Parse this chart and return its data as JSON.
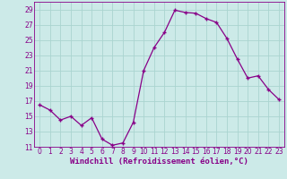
{
  "hours": [
    0,
    1,
    2,
    3,
    4,
    5,
    6,
    7,
    8,
    9,
    10,
    11,
    12,
    13,
    14,
    15,
    16,
    17,
    18,
    19,
    20,
    21,
    22,
    23
  ],
  "values": [
    16.5,
    15.8,
    14.5,
    15.0,
    13.8,
    14.8,
    12.0,
    11.2,
    11.5,
    14.2,
    21.0,
    24.0,
    26.0,
    28.9,
    28.6,
    28.5,
    27.8,
    27.3,
    25.2,
    22.5,
    20.0,
    20.3,
    18.5,
    17.2
  ],
  "line_color": "#880088",
  "marker": "+",
  "marker_size": 3,
  "bg_color": "#cceae8",
  "grid_color": "#aad4d0",
  "xlabel": "Windchill (Refroidissement éolien,°C)",
  "ylim": [
    11,
    30
  ],
  "yticks": [
    11,
    13,
    15,
    17,
    19,
    21,
    23,
    25,
    27,
    29
  ],
  "xticks": [
    0,
    1,
    2,
    3,
    4,
    5,
    6,
    7,
    8,
    9,
    10,
    11,
    12,
    13,
    14,
    15,
    16,
    17,
    18,
    19,
    20,
    21,
    22,
    23
  ],
  "tick_fontsize": 5.5,
  "xlabel_fontsize": 6.5,
  "line_width": 0.9
}
